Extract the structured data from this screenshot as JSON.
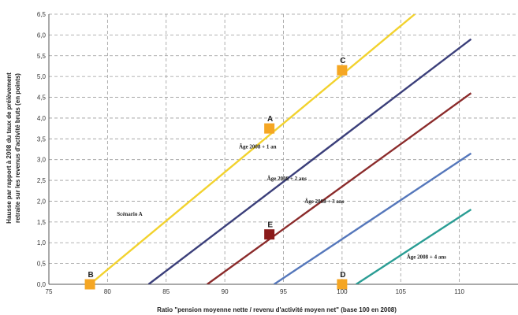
{
  "chart_data": {
    "type": "line",
    "xlabel": "Ratio \"pension moyenne nette / revenu d'activité moyen net\" (base 100 en 2008)",
    "ylabel_line1": "Hausse par rapport à 2008 du taux de prélèvement",
    "ylabel_line2": "retraite sur les revenus d'activité bruts (en points)",
    "xlim": [
      75,
      115
    ],
    "ylim": [
      0,
      6.5
    ],
    "x_ticks": [
      {
        "v": 75,
        "label": "75"
      },
      {
        "v": 80,
        "label": "80"
      },
      {
        "v": 85,
        "label": "85"
      },
      {
        "v": 90,
        "label": "90"
      },
      {
        "v": 95,
        "label": "95"
      },
      {
        "v": 100,
        "label": "100"
      },
      {
        "v": 105,
        "label": "105"
      },
      {
        "v": 110,
        "label": "110"
      }
    ],
    "y_ticks": [
      {
        "v": 0,
        "label": "0,0"
      },
      {
        "v": 0.5,
        "label": "0,5"
      },
      {
        "v": 1.0,
        "label": "1,0"
      },
      {
        "v": 1.5,
        "label": "1,5"
      },
      {
        "v": 2.0,
        "label": "2,0"
      },
      {
        "v": 2.5,
        "label": "2,5"
      },
      {
        "v": 3.0,
        "label": "3,0"
      },
      {
        "v": 3.5,
        "label": "3,5"
      },
      {
        "v": 4.0,
        "label": "4,0"
      },
      {
        "v": 4.5,
        "label": "4,5"
      },
      {
        "v": 5.0,
        "label": "5,0"
      },
      {
        "v": 5.5,
        "label": "5,5"
      },
      {
        "v": 6.0,
        "label": "6,0"
      },
      {
        "v": 6.5,
        "label": "6,5"
      }
    ],
    "grid": true,
    "series": [
      {
        "label": "Scénario A",
        "color": "#f2d22e",
        "x": [
          78.5,
          106.2
        ],
        "y": [
          0,
          6.5
        ],
        "label_x": 80.8,
        "label_y": 1.65,
        "label_color": "#e8a23a"
      },
      {
        "label": "Âge 2008 + 1 an",
        "color": "#3b3f7a",
        "x": [
          83.5,
          111
        ],
        "y": [
          0,
          5.9
        ],
        "label_x": 91.2,
        "label_y": 3.27,
        "label_color": "#222222"
      },
      {
        "label": "Âge 2008 + 2 ans",
        "color": "#8b2b2b",
        "x": [
          88.5,
          111
        ],
        "y": [
          0,
          4.6
        ],
        "label_x": 93.6,
        "label_y": 2.5,
        "label_color": "#222222"
      },
      {
        "label": "Âge 2008 + 3 ans",
        "color": "#5577bb",
        "x": [
          94.2,
          111
        ],
        "y": [
          0,
          3.15
        ],
        "label_x": 96.8,
        "label_y": 1.95,
        "label_color": "#222222"
      },
      {
        "label": "Âge 2008 + 4 ans",
        "color": "#2a9d94",
        "x": [
          101.2,
          111
        ],
        "y": [
          0,
          1.8
        ],
        "label_x": 105.5,
        "label_y": 0.62,
        "label_color": "#222222"
      }
    ],
    "points": [
      {
        "label": "A",
        "x": 93.8,
        "y": 3.75,
        "color": "#f5a623"
      },
      {
        "label": "B",
        "x": 78.5,
        "y": 0.0,
        "color": "#f5a623"
      },
      {
        "label": "C",
        "x": 100.0,
        "y": 5.15,
        "color": "#f5a623"
      },
      {
        "label": "D",
        "x": 100.0,
        "y": 0.0,
        "color": "#f5a623"
      },
      {
        "label": "E",
        "x": 93.8,
        "y": 1.2,
        "color": "#8b1a1a"
      }
    ]
  }
}
